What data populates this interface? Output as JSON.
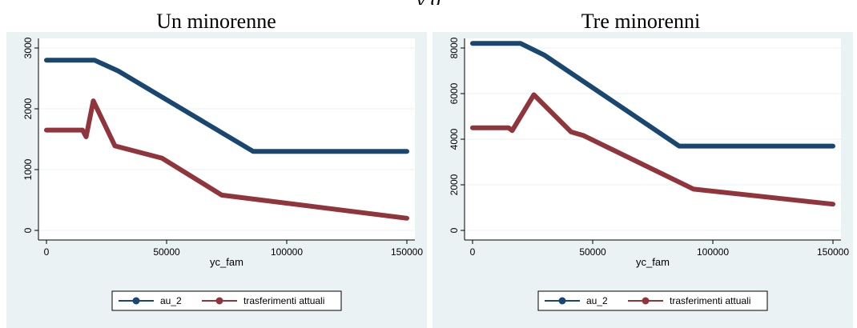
{
  "header_fragment": "y g",
  "colors": {
    "plot_bg": "#eaf2f3",
    "au2_color": "#1a476f",
    "trasf_color": "#90353b"
  },
  "chart_data": [
    {
      "type": "line",
      "title": "Un minorenne",
      "xlabel": "yc_fam",
      "ylabel": "",
      "xlim": [
        0,
        150000
      ],
      "ylim": [
        0,
        3000
      ],
      "xticks": [
        0,
        50000,
        100000,
        150000
      ],
      "yticks": [
        0,
        1000,
        2000,
        3000
      ],
      "grid": true,
      "legend_position": "bottom-center",
      "series": [
        {
          "name": "au_2",
          "color": "#1a476f",
          "x": [
            0,
            20000,
            30000,
            86000,
            150000
          ],
          "y": [
            2800,
            2800,
            2620,
            1300,
            1300
          ]
        },
        {
          "name": "trasferimenti attuali",
          "color": "#90353b",
          "x": [
            0,
            15000,
            16500,
            19500,
            28500,
            48000,
            73000,
            150000
          ],
          "y": [
            1650,
            1650,
            1540,
            2130,
            1390,
            1190,
            580,
            200
          ]
        }
      ]
    },
    {
      "type": "line",
      "title": "Tre minorenni",
      "xlabel": "yc_fam",
      "ylabel": "",
      "xlim": [
        0,
        150000
      ],
      "ylim": [
        0,
        8000
      ],
      "xticks": [
        0,
        50000,
        100000,
        150000
      ],
      "yticks": [
        0,
        2000,
        4000,
        6000,
        8000
      ],
      "grid": true,
      "legend_position": "bottom-center",
      "series": [
        {
          "name": "au_2",
          "color": "#1a476f",
          "x": [
            0,
            20000,
            30000,
            86000,
            150000
          ],
          "y": [
            8200,
            8200,
            7680,
            3700,
            3700
          ]
        },
        {
          "name": "trasferimenti attuali",
          "color": "#90353b",
          "x": [
            0,
            15000,
            16500,
            25500,
            41000,
            46000,
            92000,
            150000
          ],
          "y": [
            4500,
            4500,
            4380,
            5950,
            4320,
            4170,
            1810,
            1150
          ]
        }
      ]
    }
  ]
}
